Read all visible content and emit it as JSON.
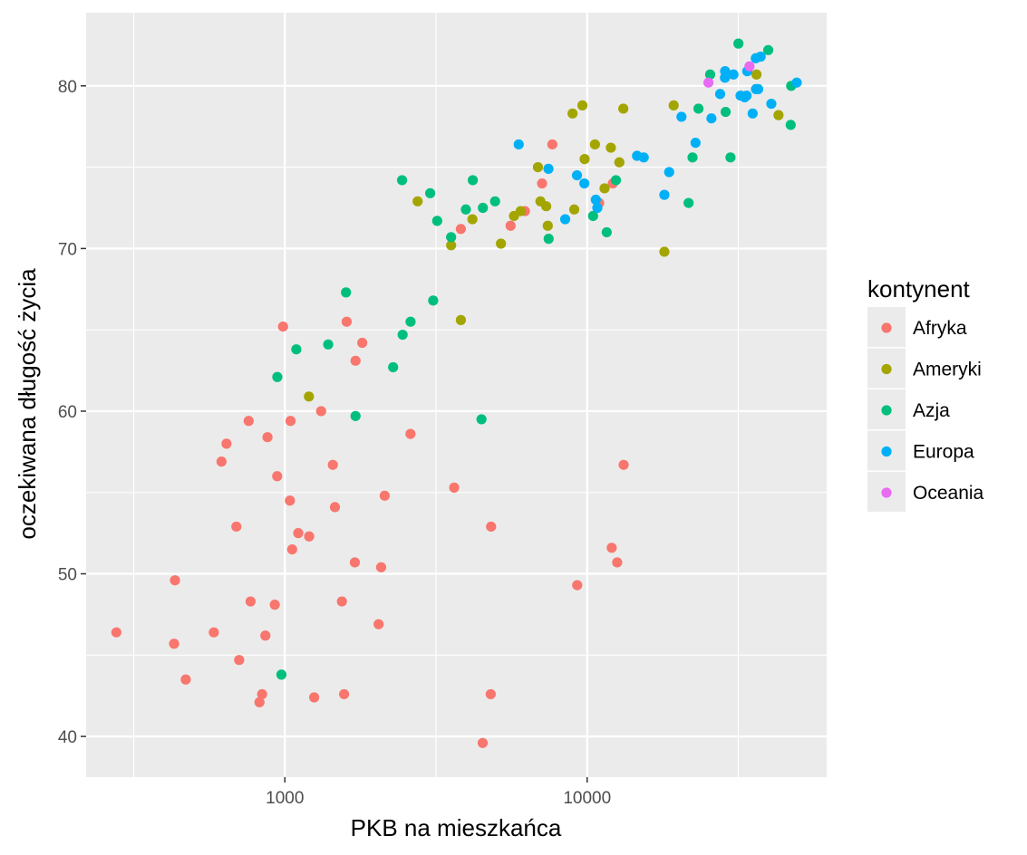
{
  "chart_data": {
    "type": "scatter",
    "xlabel": "PKB na mieszkańca",
    "ylabel": "oczekiwana długość życia",
    "x_scale": "log10",
    "xlim": [
      220,
      62000
    ],
    "ylim": [
      37.5,
      84.5
    ],
    "x_ticks": [
      {
        "value": 1000,
        "label": "1000"
      },
      {
        "value": 10000,
        "label": "10000"
      }
    ],
    "y_ticks": [
      {
        "value": 40,
        "label": "40"
      },
      {
        "value": 50,
        "label": "50"
      },
      {
        "value": 60,
        "label": "60"
      },
      {
        "value": 70,
        "label": "70"
      },
      {
        "value": 80,
        "label": "80"
      }
    ],
    "grid": true,
    "panel_color": "#ebebeb",
    "legend": {
      "title": "kontynent",
      "position": "right",
      "entries": [
        {
          "label": "Afryka",
          "color": "#F8766D"
        },
        {
          "label": "Ameryki",
          "color": "#A3A500"
        },
        {
          "label": "Azja",
          "color": "#00BF7D"
        },
        {
          "label": "Europa",
          "color": "#00B0F6"
        },
        {
          "label": "Oceania",
          "color": "#E76BF3"
        }
      ]
    },
    "series": [
      {
        "name": "Afryka",
        "color": "#F8766D",
        "points": [
          [
            277,
            46.4
          ],
          [
            430,
            45.7
          ],
          [
            470,
            43.5
          ],
          [
            582,
            46.4
          ],
          [
            617,
            56.9
          ],
          [
            641,
            58.0
          ],
          [
            691,
            52.9
          ],
          [
            706,
            44.7
          ],
          [
            759,
            59.4
          ],
          [
            770,
            48.3
          ],
          [
            824,
            42.1
          ],
          [
            841,
            42.6
          ],
          [
            862,
            46.2
          ],
          [
            876,
            58.4
          ],
          [
            926,
            48.1
          ],
          [
            943,
            56.0
          ],
          [
            986,
            65.2
          ],
          [
            1039,
            54.5
          ],
          [
            1044,
            59.4
          ],
          [
            1057,
            51.5
          ],
          [
            1107,
            52.5
          ],
          [
            1203,
            52.3
          ],
          [
            1250,
            42.4
          ],
          [
            1318,
            60.0
          ],
          [
            1441,
            56.7
          ],
          [
            1464,
            54.1
          ],
          [
            1544,
            48.3
          ],
          [
            1570,
            42.6
          ],
          [
            1601,
            65.5
          ],
          [
            1704,
            50.7
          ],
          [
            1713,
            63.1
          ],
          [
            1803,
            64.2
          ],
          [
            2042,
            46.9
          ],
          [
            2082,
            50.4
          ],
          [
            2139,
            54.8
          ],
          [
            2603,
            58.6
          ],
          [
            3632,
            55.3
          ],
          [
            3820,
            71.2
          ],
          [
            4513,
            39.6
          ],
          [
            4797,
            42.6
          ],
          [
            4811,
            52.9
          ],
          [
            5581,
            71.4
          ],
          [
            6223,
            72.3
          ],
          [
            7093,
            74.0
          ],
          [
            7670,
            76.4
          ],
          [
            9270,
            49.3
          ],
          [
            10956,
            72.8
          ],
          [
            12057,
            51.6
          ],
          [
            12154,
            74.0
          ],
          [
            12570,
            50.7
          ],
          [
            13206,
            56.7
          ],
          [
            433,
            49.6
          ]
        ]
      },
      {
        "name": "Ameryki",
        "color": "#A3A500",
        "points": [
          [
            1201,
            60.9
          ],
          [
            2749,
            72.9
          ],
          [
            3548,
            70.2
          ],
          [
            3821,
            65.6
          ],
          [
            4173,
            71.8
          ],
          [
            5186,
            70.3
          ],
          [
            5728,
            72.0
          ],
          [
            6025,
            72.3
          ],
          [
            6873,
            75.0
          ],
          [
            7006,
            72.9
          ],
          [
            7321,
            72.6
          ],
          [
            7408,
            71.4
          ],
          [
            8948,
            78.3
          ],
          [
            9065,
            72.4
          ],
          [
            9645,
            78.8
          ],
          [
            9809,
            75.5
          ],
          [
            10611,
            76.4
          ],
          [
            11416,
            73.7
          ],
          [
            11977,
            76.2
          ],
          [
            12779,
            75.3
          ],
          [
            13172,
            78.6
          ],
          [
            18009,
            69.8
          ],
          [
            19329,
            78.8
          ],
          [
            36319,
            80.7
          ],
          [
            42952,
            78.2
          ]
        ]
      },
      {
        "name": "Azja",
        "color": "#00BF7D",
        "points": [
          [
            974,
            43.8
          ],
          [
            944,
            62.1
          ],
          [
            1091,
            63.8
          ],
          [
            1391,
            64.1
          ],
          [
            1593,
            67.3
          ],
          [
            1713,
            59.7
          ],
          [
            2281,
            62.7
          ],
          [
            2442,
            74.2
          ],
          [
            2452,
            64.7
          ],
          [
            2605,
            65.5
          ],
          [
            3025,
            73.4
          ],
          [
            3095,
            66.8
          ],
          [
            3191,
            71.7
          ],
          [
            3548,
            70.7
          ],
          [
            3970,
            72.4
          ],
          [
            4185,
            74.2
          ],
          [
            4471,
            59.5
          ],
          [
            4519,
            72.5
          ],
          [
            4959,
            72.9
          ],
          [
            7458,
            70.6
          ],
          [
            10461,
            72.0
          ],
          [
            11606,
            71.0
          ],
          [
            12452,
            74.2
          ],
          [
            21655,
            72.8
          ],
          [
            22316,
            75.6
          ],
          [
            23348,
            78.6
          ],
          [
            25523,
            80.7
          ],
          [
            28718,
            78.4
          ],
          [
            29796,
            75.6
          ],
          [
            31656,
            82.6
          ],
          [
            39725,
            82.2
          ],
          [
            47307,
            80.0
          ],
          [
            47143,
            77.6
          ]
        ]
      },
      {
        "name": "Europa",
        "color": "#00B0F6",
        "points": [
          [
            5937,
            76.4
          ],
          [
            7446,
            74.9
          ],
          [
            8459,
            71.8
          ],
          [
            9254,
            74.5
          ],
          [
            9787,
            74.0
          ],
          [
            10681,
            73.0
          ],
          [
            10808,
            72.5
          ],
          [
            14619,
            75.7
          ],
          [
            15390,
            75.6
          ],
          [
            18008,
            73.3
          ],
          [
            18678,
            74.7
          ],
          [
            20510,
            78.1
          ],
          [
            22833,
            76.5
          ],
          [
            25768,
            78.0
          ],
          [
            27538,
            79.5
          ],
          [
            28569,
            80.5
          ],
          [
            28604,
            80.9
          ],
          [
            30470,
            80.7
          ],
          [
            32170,
            79.4
          ],
          [
            33207,
            79.3
          ],
          [
            33692,
            79.4
          ],
          [
            33860,
            80.9
          ],
          [
            35278,
            78.3
          ],
          [
            36181,
            79.8
          ],
          [
            36126,
            81.7
          ],
          [
            36798,
            79.8
          ],
          [
            37506,
            81.8
          ],
          [
            40676,
            78.9
          ],
          [
            49357,
            80.2
          ]
        ]
      },
      {
        "name": "Oceania",
        "color": "#E76BF3",
        "points": [
          [
            25185,
            80.2
          ],
          [
            34435,
            81.2
          ]
        ]
      }
    ]
  }
}
